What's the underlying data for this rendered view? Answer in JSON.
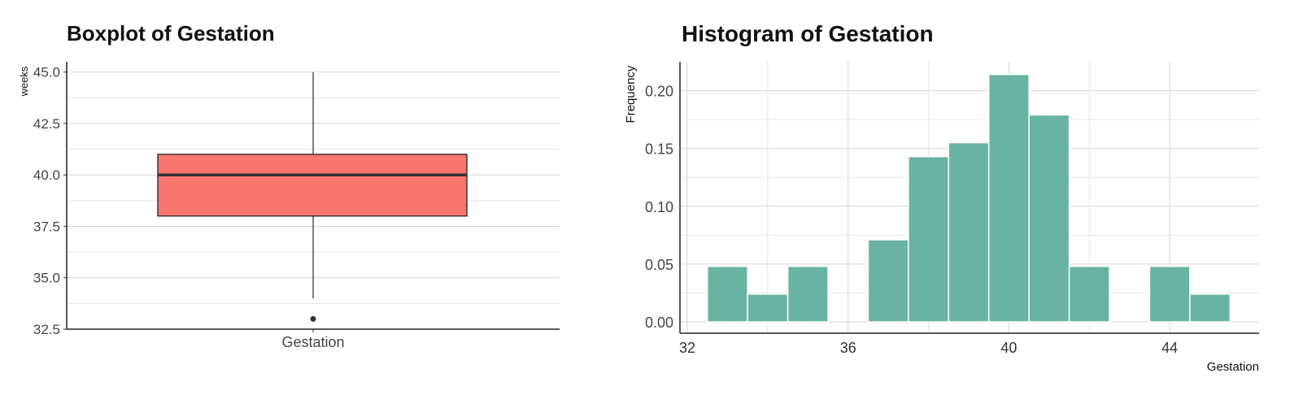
{
  "charts": [
    {
      "type": "box",
      "title": "Boxplot of Gestation",
      "ylabel": "weeks",
      "xlabel": "",
      "category": "Gestation",
      "ylim": [
        32.5,
        45.5
      ],
      "yticks": [
        "32.5",
        "35.0",
        "37.5",
        "40.0",
        "42.5",
        "45.0"
      ],
      "whisker_low": 34,
      "q1": 38,
      "median": 40,
      "q3": 41,
      "whisker_high": 45,
      "outliers": [
        33
      ],
      "fill_color": "#f8766d"
    },
    {
      "type": "histogram",
      "title": "Histogram of Gestation",
      "ylabel": "Frequency",
      "xlabel": "Gestation",
      "xlim": [
        32,
        46
      ],
      "ylim": [
        0,
        0.225
      ],
      "xticks": [
        "32",
        "36",
        "40",
        "44"
      ],
      "yticks": [
        "0.00",
        "0.05",
        "0.10",
        "0.15",
        "0.20"
      ],
      "bin_width": 1,
      "bins": [
        {
          "start": 32.5,
          "value": 0.048
        },
        {
          "start": 33.5,
          "value": 0.024
        },
        {
          "start": 34.5,
          "value": 0.048
        },
        {
          "start": 35.5,
          "value": 0.0
        },
        {
          "start": 36.5,
          "value": 0.071
        },
        {
          "start": 37.5,
          "value": 0.143
        },
        {
          "start": 38.5,
          "value": 0.155
        },
        {
          "start": 39.5,
          "value": 0.214
        },
        {
          "start": 40.5,
          "value": 0.179
        },
        {
          "start": 41.5,
          "value": 0.048
        },
        {
          "start": 42.5,
          "value": 0.0
        },
        {
          "start": 43.5,
          "value": 0.048
        },
        {
          "start": 44.5,
          "value": 0.024
        }
      ],
      "fill_color": "#69b3a2"
    }
  ]
}
